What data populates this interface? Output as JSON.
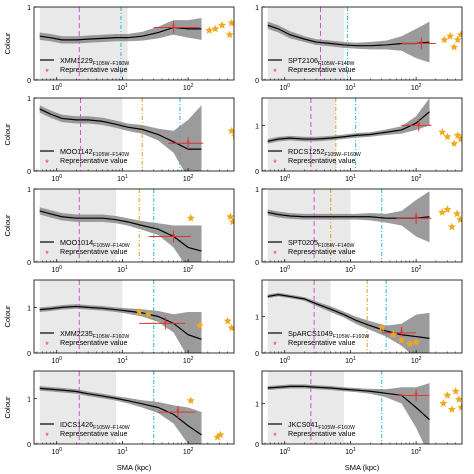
{
  "figure": {
    "ylabel": "Colour",
    "xlabel": "SMA (kpc)",
    "legend_line": "line",
    "legend_point": "Representative value"
  },
  "colors": {
    "line": "#000000",
    "band": "#8a8a8a",
    "shade": "#e9e9e9",
    "magenta": "#d64fd6",
    "orange": "#e0a020",
    "cyan": "#22bcd8",
    "red": "#e03030",
    "star": "#f2a81d"
  },
  "chart_data": [
    {
      "type": "line",
      "name": "XMM1229",
      "sub": "F105W−F160W",
      "xlog": true,
      "ylim": [
        0,
        1.0
      ],
      "yticks": [
        0,
        1
      ],
      "x": [
        0.55,
        0.8,
        1.2,
        2,
        3,
        5,
        8,
        12,
        20,
        35,
        60,
        100,
        160
      ],
      "y": [
        0.6,
        0.58,
        0.55,
        0.55,
        0.56,
        0.57,
        0.58,
        0.58,
        0.6,
        0.65,
        0.72,
        0.7,
        0.7
      ],
      "band": [
        0.05,
        0.05,
        0.05,
        0.05,
        0.05,
        0.05,
        0.05,
        0.05,
        0.06,
        0.08,
        0.1,
        0.12,
        0.15
      ],
      "shade": [
        0.55,
        12
      ],
      "magenta": 2.2,
      "orange": null,
      "cyan": 9.5,
      "rep": {
        "x": 60,
        "y": 0.72,
        "x0": 30,
        "x1": 150
      },
      "stars": [
        [
          210,
          0.68
        ],
        [
          260,
          0.7
        ],
        [
          330,
          0.75
        ],
        [
          430,
          0.62
        ],
        [
          460,
          0.78
        ]
      ]
    },
    {
      "type": "line",
      "name": "SPT2106",
      "sub": "F105W−F140W",
      "xlog": true,
      "ylim": [
        0,
        1.0
      ],
      "yticks": [
        0,
        1
      ],
      "x": [
        0.55,
        0.8,
        1.2,
        2,
        3,
        5,
        8,
        12,
        20,
        35,
        60,
        100,
        160
      ],
      "y": [
        0.75,
        0.7,
        0.62,
        0.56,
        0.52,
        0.5,
        0.48,
        0.47,
        0.47,
        0.48,
        0.5,
        0.5,
        0.52
      ],
      "band": [
        0.05,
        0.05,
        0.05,
        0.04,
        0.04,
        0.04,
        0.04,
        0.04,
        0.05,
        0.06,
        0.1,
        0.2,
        0.28
      ],
      "shade": [
        0.55,
        8
      ],
      "magenta": 3.5,
      "orange": null,
      "cyan": 9,
      "rep": {
        "x": 120,
        "y": 0.5,
        "x0": 60,
        "x1": 200
      },
      "stars": [
        [
          270,
          0.55
        ],
        [
          330,
          0.6
        ],
        [
          380,
          0.45
        ],
        [
          430,
          0.55
        ],
        [
          480,
          0.62
        ]
      ]
    },
    {
      "type": "line",
      "name": "MOO1142",
      "sub": "F105W−F140W",
      "xlog": true,
      "ylim": [
        0,
        1.0
      ],
      "yticks": [
        0,
        1
      ],
      "x": [
        0.55,
        0.8,
        1.2,
        2,
        3,
        5,
        8,
        12,
        20,
        35,
        60,
        100,
        160
      ],
      "y": [
        0.85,
        0.78,
        0.72,
        0.7,
        0.7,
        0.68,
        0.64,
        0.6,
        0.57,
        0.5,
        0.4,
        0.3,
        0.3
      ],
      "band": [
        0.05,
        0.05,
        0.05,
        0.05,
        0.05,
        0.05,
        0.05,
        0.05,
        0.06,
        0.08,
        0.15,
        0.4,
        0.6
      ],
      "shade": [
        0.55,
        10
      ],
      "magenta": 2.3,
      "orange": 20,
      "cyan": 75,
      "rep": {
        "x": 100,
        "y": 0.38,
        "x0": 50,
        "x1": 170
      },
      "stars": [
        [
          460,
          0.55
        ],
        [
          520,
          0.48
        ]
      ]
    },
    {
      "type": "line",
      "name": "RDCS1252",
      "sub": "F105W−F160W",
      "xlog": true,
      "ylim": [
        0,
        1.6
      ],
      "yticks": [
        0,
        1
      ],
      "x": [
        0.55,
        0.8,
        1.2,
        2,
        3,
        5,
        8,
        12,
        20,
        35,
        60,
        100,
        160
      ],
      "y": [
        0.65,
        0.7,
        0.72,
        0.7,
        0.7,
        0.72,
        0.75,
        0.78,
        0.8,
        0.85,
        0.9,
        1.05,
        1.3
      ],
      "band": [
        0.05,
        0.05,
        0.05,
        0.05,
        0.05,
        0.05,
        0.05,
        0.05,
        0.05,
        0.06,
        0.08,
        0.15,
        0.3
      ],
      "shade": [
        0.55,
        6
      ],
      "magenta": 2.5,
      "orange": 6,
      "cyan": 12,
      "rep": {
        "x": 110,
        "y": 1.0,
        "x0": 60,
        "x1": 170
      },
      "stars": [
        [
          250,
          0.85
        ],
        [
          300,
          0.75
        ],
        [
          380,
          0.6
        ],
        [
          430,
          0.78
        ],
        [
          480,
          0.7
        ]
      ]
    },
    {
      "type": "line",
      "name": "MOO1014",
      "sub": "F105W−F140W",
      "xlog": true,
      "ylim": [
        0,
        1.0
      ],
      "yticks": [
        0,
        1
      ],
      "x": [
        0.55,
        0.8,
        1.2,
        2,
        3,
        5,
        8,
        12,
        20,
        35,
        60,
        100,
        160
      ],
      "y": [
        0.7,
        0.66,
        0.62,
        0.6,
        0.6,
        0.6,
        0.58,
        0.55,
        0.5,
        0.45,
        0.35,
        0.2,
        0.15
      ],
      "band": [
        0.05,
        0.05,
        0.05,
        0.05,
        0.05,
        0.05,
        0.05,
        0.05,
        0.06,
        0.08,
        0.15,
        0.3,
        0.35
      ],
      "shade": [
        0.55,
        8
      ],
      "magenta": 2.2,
      "orange": 18,
      "cyan": 30,
      "rep": {
        "x": 60,
        "y": 0.35,
        "x0": 25,
        "x1": 110
      },
      "stars": [
        [
          110,
          0.6
        ],
        [
          440,
          0.62
        ],
        [
          480,
          0.55
        ]
      ]
    },
    {
      "type": "line",
      "name": "SPT0205",
      "sub": "F105W−F140W",
      "xlog": true,
      "ylim": [
        0,
        1.0
      ],
      "yticks": [
        0,
        1
      ],
      "x": [
        0.55,
        0.8,
        1.2,
        2,
        3,
        5,
        8,
        12,
        20,
        35,
        60,
        100,
        160
      ],
      "y": [
        0.68,
        0.65,
        0.63,
        0.62,
        0.62,
        0.62,
        0.62,
        0.62,
        0.62,
        0.6,
        0.6,
        0.6,
        0.62
      ],
      "band": [
        0.04,
        0.04,
        0.04,
        0.04,
        0.04,
        0.04,
        0.04,
        0.04,
        0.05,
        0.06,
        0.1,
        0.25,
        0.35
      ],
      "shade": [
        0.55,
        10
      ],
      "magenta": 2.8,
      "orange": 5,
      "cyan": 30,
      "rep": {
        "x": 100,
        "y": 0.6,
        "x0": 50,
        "x1": 170
      },
      "stars": [
        [
          250,
          0.68
        ],
        [
          300,
          0.72
        ],
        [
          350,
          0.48
        ],
        [
          420,
          0.66
        ],
        [
          470,
          0.58
        ]
      ]
    },
    {
      "type": "line",
      "name": "XMM2235",
      "sub": "F105W−F160W",
      "xlog": true,
      "ylim": [
        0,
        1.6
      ],
      "yticks": [
        0,
        1
      ],
      "x": [
        0.55,
        0.8,
        1.2,
        2,
        3,
        5,
        8,
        12,
        20,
        35,
        60,
        100,
        160
      ],
      "y": [
        0.95,
        0.97,
        1.0,
        1.02,
        1.0,
        0.98,
        0.95,
        0.92,
        0.88,
        0.8,
        0.65,
        0.4,
        0.3
      ],
      "band": [
        0.05,
        0.05,
        0.05,
        0.05,
        0.05,
        0.05,
        0.05,
        0.06,
        0.08,
        0.12,
        0.2,
        0.5,
        0.6
      ],
      "shade": [
        0.55,
        10
      ],
      "magenta": 2.2,
      "orange": null,
      "cyan": 30,
      "rep": {
        "x": 45,
        "y": 0.65,
        "x0": 18,
        "x1": 90
      },
      "stars": [
        [
          18,
          0.9
        ],
        [
          25,
          0.85
        ],
        [
          150,
          0.6
        ],
        [
          400,
          0.7
        ],
        [
          460,
          0.55
        ]
      ]
    },
    {
      "type": "line",
      "name": "SpARCS1049",
      "sub": "F105W−F160W",
      "xlog": true,
      "ylim": [
        0,
        2.0
      ],
      "yticks": [
        0,
        1
      ],
      "x": [
        0.55,
        0.8,
        1.2,
        2,
        3,
        5,
        8,
        12,
        20,
        35,
        60,
        100,
        160
      ],
      "y": [
        1.55,
        1.6,
        1.55,
        1.48,
        1.35,
        1.2,
        1.05,
        0.9,
        0.75,
        0.6,
        0.5,
        0.45,
        0.4
      ],
      "band": [
        0.05,
        0.05,
        0.05,
        0.05,
        0.06,
        0.08,
        0.08,
        0.1,
        0.12,
        0.15,
        0.3,
        0.6,
        0.7
      ],
      "shade": [
        0.55,
        5
      ],
      "magenta": 2.8,
      "orange": 18,
      "cyan": 35,
      "rep": {
        "x": 60,
        "y": 0.55,
        "x0": 30,
        "x1": 100
      },
      "stars": [
        [
          30,
          0.7
        ],
        [
          45,
          0.5
        ],
        [
          60,
          0.35
        ],
        [
          80,
          0.25
        ],
        [
          100,
          0.3
        ]
      ]
    },
    {
      "type": "line",
      "name": "IDCS1426",
      "sub": "F105W−F140W",
      "xlog": true,
      "ylim": [
        0,
        1.6
      ],
      "yticks": [
        0,
        1
      ],
      "x": [
        0.55,
        0.8,
        1.2,
        2,
        3,
        5,
        8,
        12,
        20,
        35,
        60,
        100,
        160
      ],
      "y": [
        1.22,
        1.2,
        1.18,
        1.15,
        1.1,
        1.05,
        1.0,
        0.95,
        0.88,
        0.8,
        0.65,
        0.4,
        0.2
      ],
      "band": [
        0.05,
        0.05,
        0.05,
        0.05,
        0.05,
        0.05,
        0.05,
        0.06,
        0.08,
        0.12,
        0.2,
        0.4,
        0.5
      ],
      "shade": [
        0.55,
        8
      ],
      "magenta": 2.2,
      "orange": null,
      "cyan": 30,
      "rep": {
        "x": 70,
        "y": 0.7,
        "x0": 35,
        "x1": 130
      },
      "stars": [
        [
          110,
          0.95
        ],
        [
          280,
          0.15
        ],
        [
          310,
          0.2
        ]
      ]
    },
    {
      "type": "line",
      "name": "JKCS041",
      "sub": "F105W−F160W",
      "xlog": true,
      "ylim": [
        0,
        1.8
      ],
      "yticks": [
        0,
        1
      ],
      "x": [
        0.55,
        0.8,
        1.2,
        2,
        3,
        5,
        8,
        12,
        20,
        35,
        60,
        100,
        160
      ],
      "y": [
        1.38,
        1.4,
        1.42,
        1.42,
        1.4,
        1.38,
        1.35,
        1.33,
        1.3,
        1.25,
        1.2,
        0.9,
        0.6
      ],
      "band": [
        0.05,
        0.05,
        0.05,
        0.05,
        0.05,
        0.05,
        0.05,
        0.05,
        0.06,
        0.1,
        0.2,
        0.5,
        0.9
      ],
      "shade": [
        0.55,
        8
      ],
      "magenta": 2.5,
      "orange": null,
      "cyan": 30,
      "rep": {
        "x": 100,
        "y": 1.2,
        "x0": 50,
        "x1": 160
      },
      "stars": [
        [
          260,
          1.0
        ],
        [
          300,
          1.2
        ],
        [
          350,
          0.85
        ],
        [
          400,
          1.3
        ],
        [
          450,
          1.1
        ],
        [
          490,
          0.9
        ]
      ]
    }
  ]
}
